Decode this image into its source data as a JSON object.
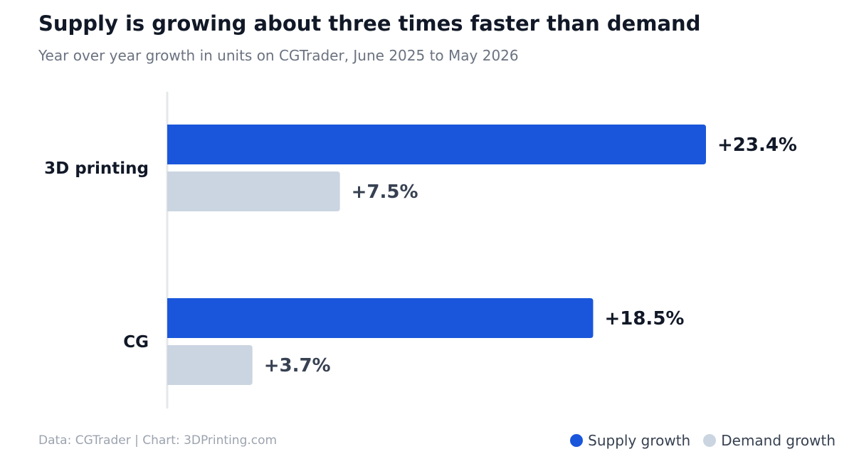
{
  "title": "Supply is growing about three times faster than demand",
  "subtitle": "Year over year growth in units on CGTrader, June 2025 to May 2026",
  "source": "Data: CGTrader  |  Chart: 3DPrinting.com",
  "colors": {
    "supply": "#1a56db",
    "demand": "#cbd5e1",
    "axis": "#e5e7eb"
  },
  "chart_data": {
    "type": "bar",
    "orientation": "horizontal",
    "categories": [
      "3D printing",
      "CG"
    ],
    "series": [
      {
        "name": "Supply growth",
        "values": [
          23.4,
          18.5
        ],
        "labels": [
          "+23.4%",
          "+18.5%"
        ]
      },
      {
        "name": "Demand growth",
        "values": [
          7.5,
          3.7
        ],
        "labels": [
          "+7.5%",
          "+3.7%"
        ]
      }
    ],
    "xlim": [
      0,
      30
    ],
    "grid": false,
    "legend_position": "bottom-right"
  }
}
